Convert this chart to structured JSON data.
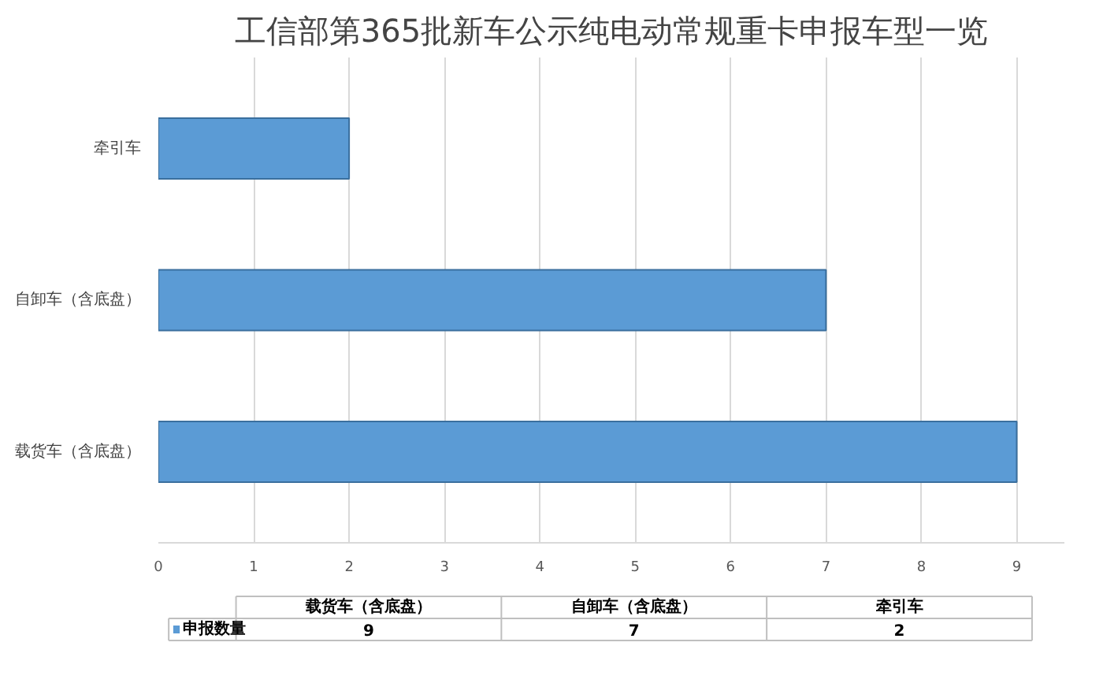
{
  "chart_data": [
    {
      "type": "bar",
      "orientation": "horizontal",
      "title": "工信部第365批新车公示纯电动常规重卡申报车型一览",
      "categories": [
        "牵引车",
        "自卸车（含底盘）",
        "载货车（含底盘）"
      ],
      "series": [
        {
          "color": "#5b9bd5",
          "values": [
            2,
            7,
            9
          ]
        }
      ],
      "xlim": [
        0,
        9.5
      ],
      "xticks": [
        0,
        1,
        2,
        3,
        4,
        5,
        6,
        7,
        8,
        9
      ],
      "grid": "x"
    },
    {
      "type": "other",
      "categories": [
        "载货车（含底盘）",
        "自卸车（含底盘）",
        "牵引车"
      ],
      "series": [
        {
          "name": "申报数量",
          "color": "#5b9bd5",
          "values": [
            9,
            7,
            2
          ]
        }
      ],
      "data_labels": true,
      "legend": "left"
    }
  ]
}
